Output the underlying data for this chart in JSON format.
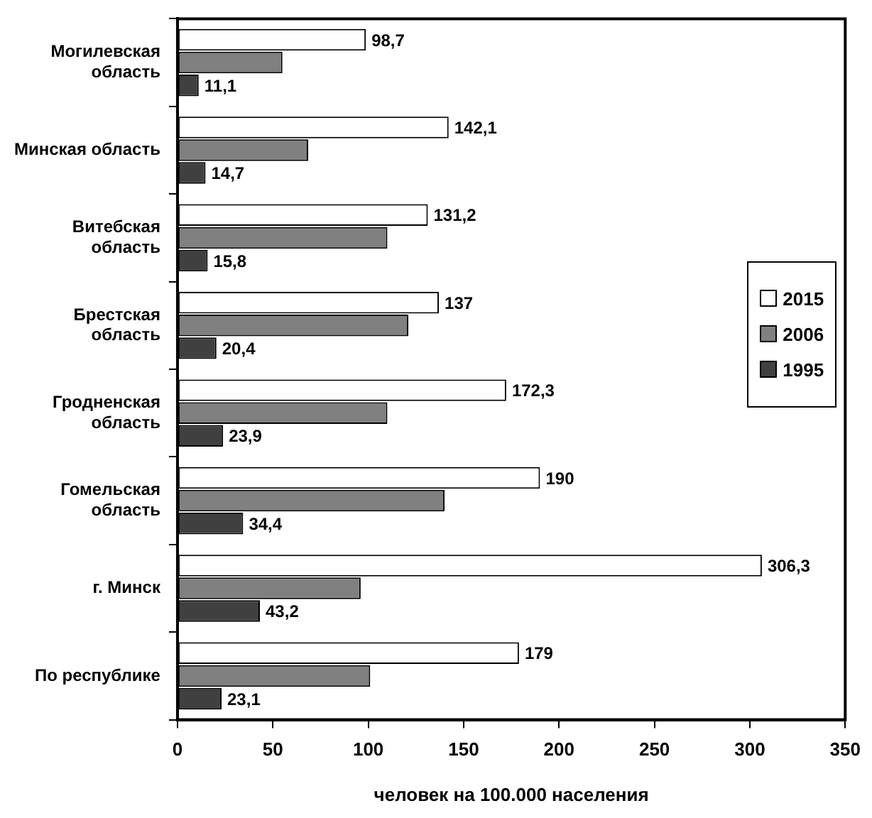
{
  "chart_data": {
    "type": "bar",
    "orientation": "horizontal",
    "categories": [
      "Могилевская область",
      "Минская область",
      "Витебская область",
      "Брестская область",
      "Гродненская область",
      "Гомельская область",
      "г. Минск",
      "По республике"
    ],
    "series": [
      {
        "name": "2015",
        "color": "#ffffff",
        "values": [
          98.7,
          142.1,
          131.2,
          137,
          172.3,
          190,
          306.3,
          179
        ],
        "value_labels": [
          "98,7",
          "142,1",
          "131,2",
          "137",
          "172,3",
          "190",
          "306,3",
          "179"
        ]
      },
      {
        "name": "2006",
        "color": "#808080",
        "values": [
          55,
          68.5,
          110,
          121,
          110,
          140,
          96,
          101
        ]
      },
      {
        "name": "1995",
        "color": "#404040",
        "values": [
          11.1,
          14.7,
          15.8,
          20.4,
          23.9,
          34.4,
          43.2,
          23.1
        ],
        "value_labels": [
          "11,1",
          "14,7",
          "15,8",
          "20,4",
          "23,9",
          "34,4",
          "43,2",
          "23,1"
        ]
      }
    ],
    "xlabel": "человек на 100.000 населения",
    "xlim": [
      0,
      350
    ],
    "xticks": [
      0,
      50,
      100,
      150,
      200,
      250,
      300,
      350
    ],
    "grid": false,
    "legend": "right"
  }
}
